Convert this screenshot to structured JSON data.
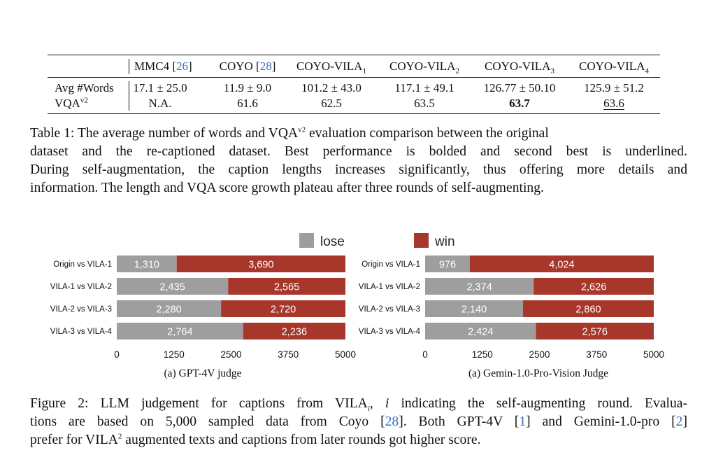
{
  "table": {
    "columns": [
      "",
      "MMC4 [26]",
      "COYO [28]",
      "COYO-VILA1",
      "COYO-VILA2",
      "COYO-VILA3",
      "COYO-VILA4"
    ],
    "rows": [
      {
        "label": "Avg #Words",
        "values": [
          "17.1 ± 25.0",
          "11.9 ± 9.0",
          "101.2 ± 43.0",
          "117.1 ± 49.1",
          "126.77 ± 50.10",
          "125.9 ± 51.2"
        ]
      },
      {
        "label": "VQAv2",
        "values": [
          "N.A.",
          "61.6",
          "62.5",
          "63.5",
          "63.7",
          "63.6"
        ]
      }
    ],
    "best_value": "63.7",
    "second_best_value": "63.6"
  },
  "table_caption": {
    "lines": [
      "Table 1: The average number of words and VQAv2 evaluation comparison between the original",
      "dataset and the re-captioned dataset. Best performance is bolded and second best is underlined.",
      "During self-augmentation, the caption lengths increases significantly, thus offering more details and",
      "information. The length and VQA score growth plateau after three rounds of self-augmenting."
    ]
  },
  "legend": {
    "lose": "lose",
    "win": "win",
    "lose_color": "#9e9e9e",
    "win_color": "#a8372b"
  },
  "chart_data": [
    {
      "type": "bar",
      "orientation": "horizontal",
      "stacked": true,
      "title": "",
      "caption": "(a) GPT-4V judge",
      "categories": [
        "Origin vs VILA-1",
        "VILA-1 vs VILA-2",
        "VILA-2 vs VILA-3",
        "VILA-3 vs VILA-4"
      ],
      "series": [
        {
          "name": "lose",
          "values": [
            1310,
            2435,
            2280,
            2764
          ],
          "labels": [
            "1,310",
            "2,435",
            "2,280",
            "2,764"
          ]
        },
        {
          "name": "win",
          "values": [
            3690,
            2565,
            2720,
            2236
          ],
          "labels": [
            "3,690",
            "2,565",
            "2,720",
            "2,236"
          ]
        }
      ],
      "xlim": [
        0,
        5000
      ],
      "xticks": [
        "0",
        "1250",
        "2500",
        "3750",
        "5000"
      ],
      "grid": false,
      "legend": "top"
    },
    {
      "type": "bar",
      "orientation": "horizontal",
      "stacked": true,
      "title": "",
      "caption": "(a) Gemin-1.0-Pro-Vision Judge",
      "categories": [
        "Origin vs VILA-1",
        "VILA-1 vs VILA-2",
        "VILA-2 vs VILA-3",
        "VILA-3 vs VILA-4"
      ],
      "series": [
        {
          "name": "lose",
          "values": [
            976,
            2374,
            2140,
            2424
          ],
          "labels": [
            "976",
            "2,374",
            "2,140",
            "2,424"
          ]
        },
        {
          "name": "win",
          "values": [
            4024,
            2626,
            2860,
            2576
          ],
          "labels": [
            "4,024",
            "2,626",
            "2,860",
            "2,576"
          ]
        }
      ],
      "xlim": [
        0,
        5000
      ],
      "xticks": [
        "0",
        "1250",
        "2500",
        "3750",
        "5000"
      ],
      "grid": false,
      "legend": "top"
    }
  ],
  "figure_caption": {
    "lines": [
      "Figure 2: LLM judgement for captions from VILAi, i indicating the self-augmenting round. Evalua-",
      "tions are based on 5,000 sampled data from Coyo [28]. Both GPT-4V [1] and Gemini-1.0-pro [2]",
      "prefer for VILA2 augmented texts and captions from later rounds got higher score."
    ]
  }
}
